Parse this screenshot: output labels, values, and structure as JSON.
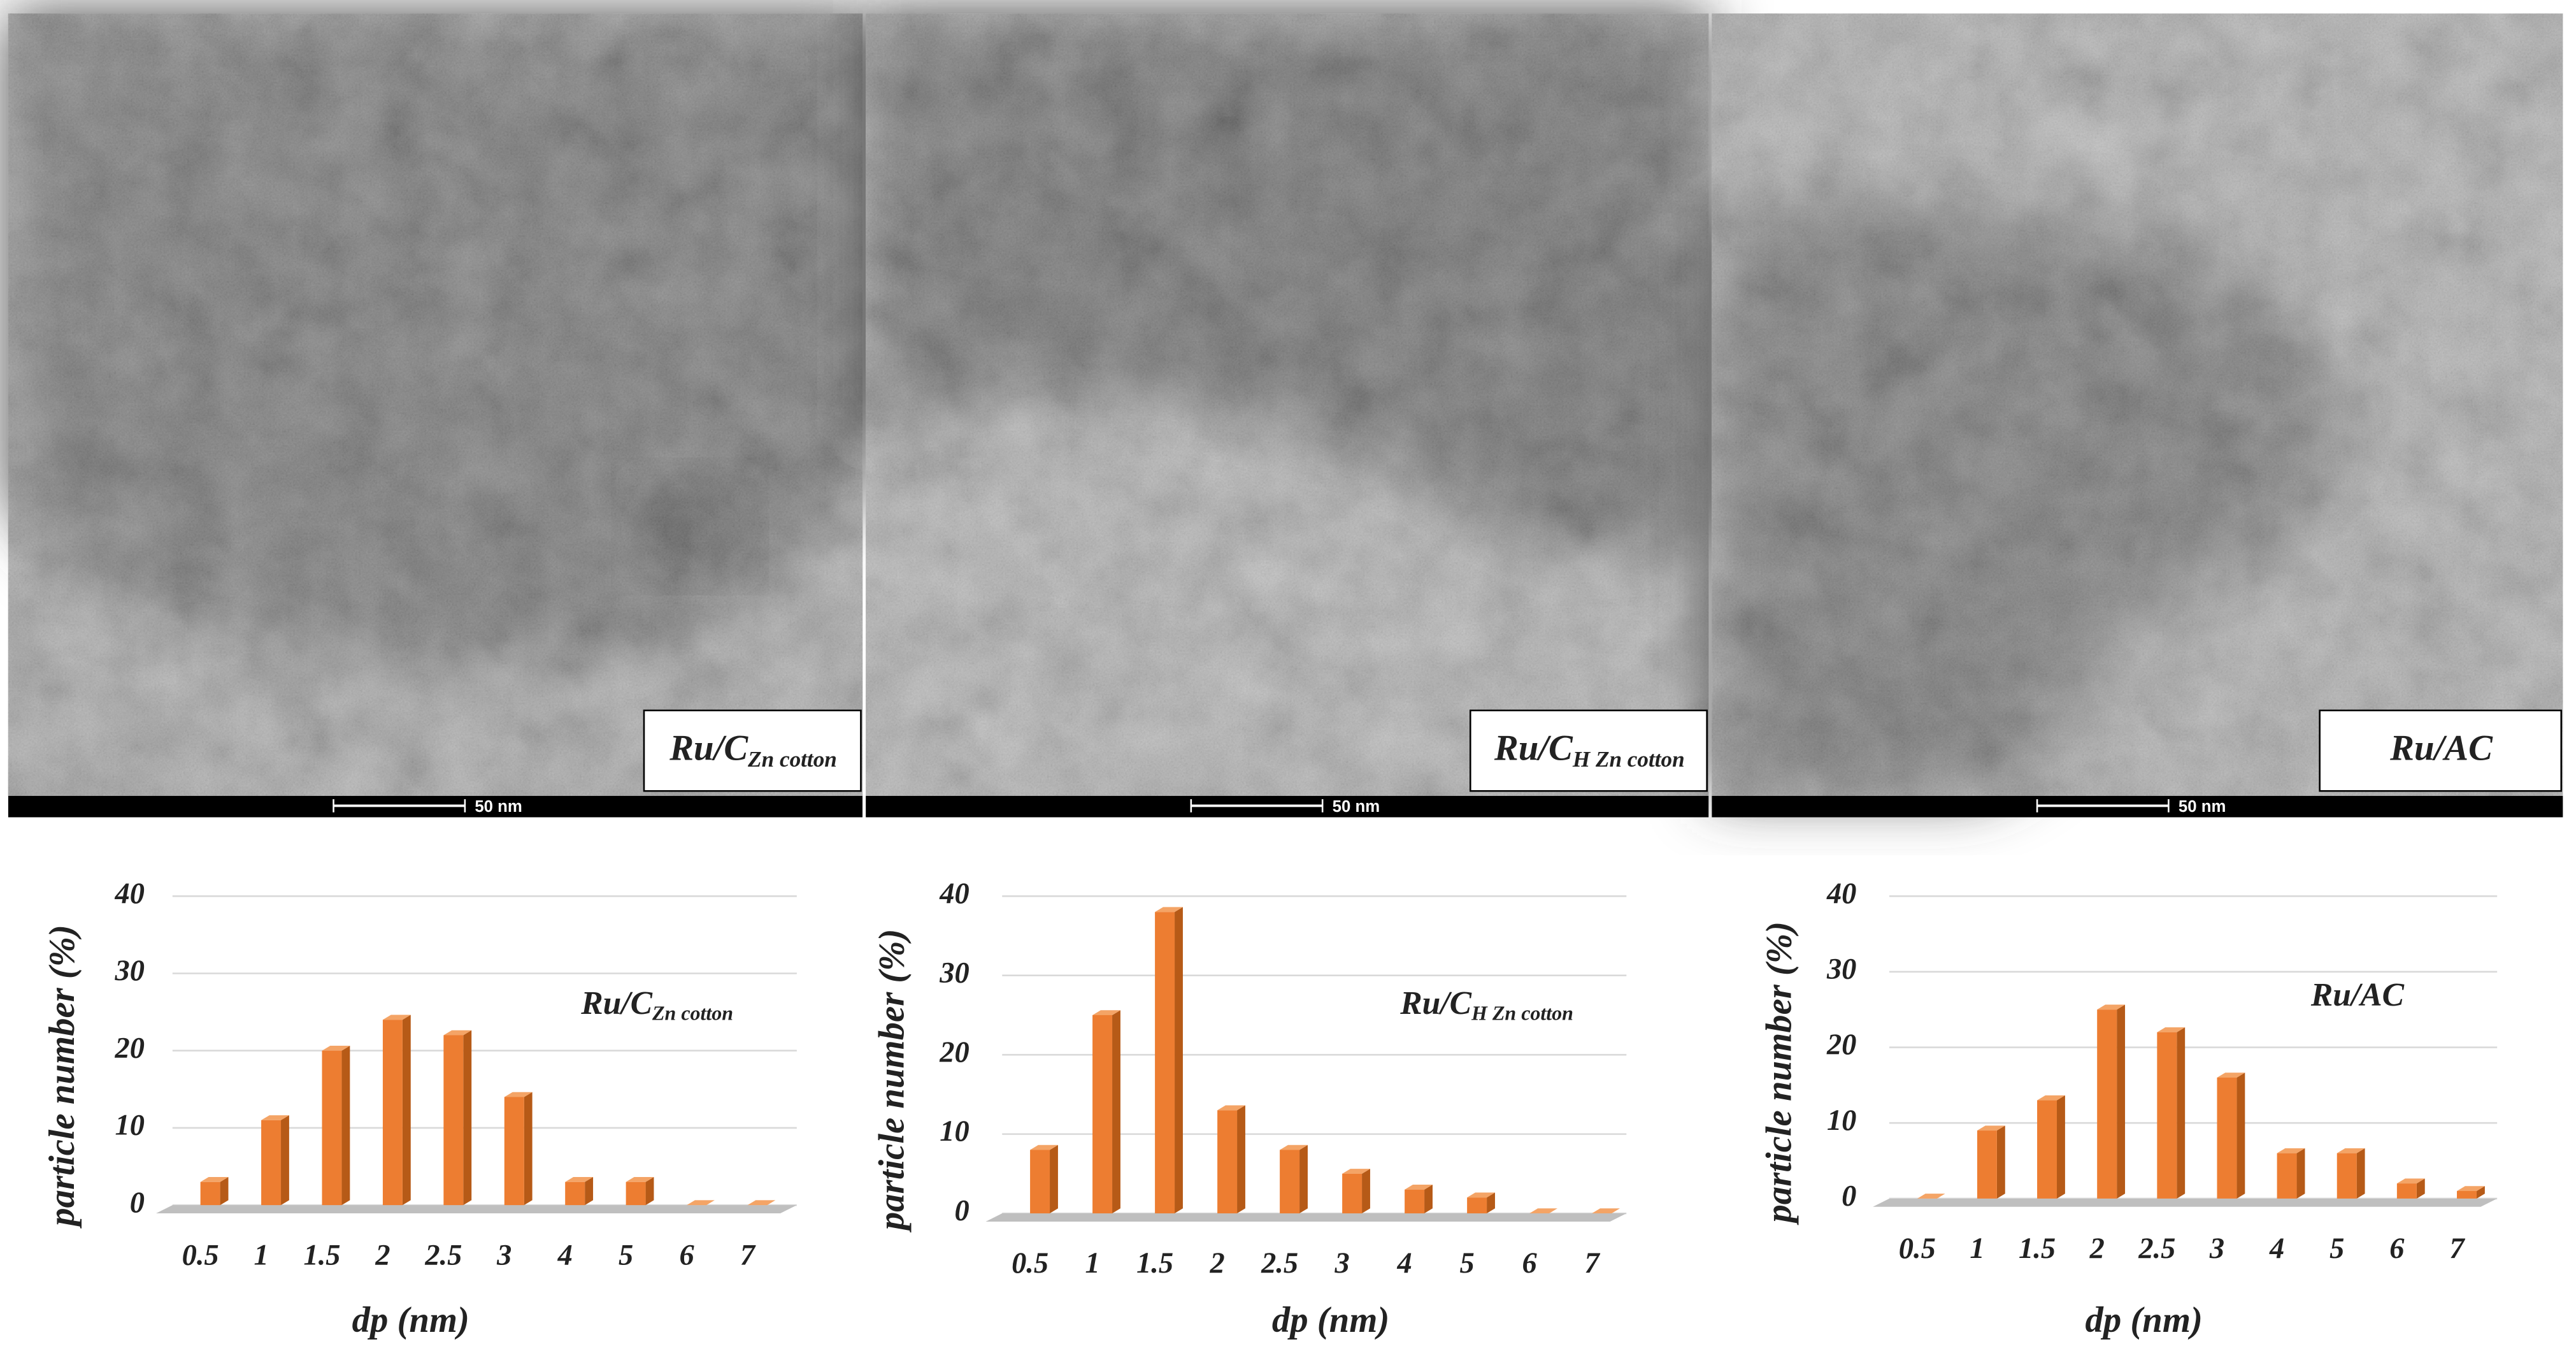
{
  "images": [
    {
      "label": "Ru/C",
      "label_sub": "Zn cotton",
      "scale_bar": "50 nm"
    },
    {
      "label": "Ru/C",
      "label_sub": "H Zn cotton",
      "scale_bar": "50 nm"
    },
    {
      "label": "Ru/AC",
      "scale_bar": "50 nm"
    }
  ],
  "chart_data": [
    {
      "type": "bar",
      "title": "Ru/C",
      "title_sub": "Zn cotton",
      "x_label": "dp (nm)",
      "y_label": "particle number (%)",
      "categories": [
        "0.5",
        "1",
        "1.5",
        "2",
        "2.5",
        "3",
        "4",
        "5",
        "6",
        "7"
      ],
      "values": [
        3,
        11,
        20,
        24,
        22,
        14,
        3,
        3,
        0,
        0
      ],
      "color": "#ed7d31",
      "ylim": [
        0,
        40
      ],
      "yticks": [
        0,
        10,
        20,
        30,
        40
      ],
      "grid": true
    },
    {
      "type": "bar",
      "title": "Ru/C",
      "title_sub": "H Zn cotton",
      "x_label": "dp (nm)",
      "y_label": "particle number (%)",
      "categories": [
        "0.5",
        "1",
        "1.5",
        "2",
        "2.5",
        "3",
        "4",
        "5",
        "6",
        "7"
      ],
      "values": [
        8,
        25,
        38,
        13,
        8,
        5,
        3,
        2,
        0,
        0
      ],
      "color": "#ed7d31",
      "ylim": [
        0,
        40
      ],
      "yticks": [
        0,
        10,
        20,
        30,
        40
      ],
      "grid": true
    },
    {
      "type": "bar",
      "title": "Ru/AC",
      "x_label": "dp (nm)",
      "y_label": "particle number (%)",
      "categories": [
        "0.5",
        "1",
        "1.5",
        "2",
        "2.5",
        "3",
        "4",
        "5",
        "6",
        "7"
      ],
      "values": [
        0,
        9,
        13,
        25,
        22,
        16,
        6,
        6,
        2,
        1
      ],
      "color": "#ed7d31",
      "ylim": [
        0,
        40
      ],
      "yticks": [
        0,
        10,
        20,
        30,
        40
      ],
      "grid": true
    }
  ]
}
